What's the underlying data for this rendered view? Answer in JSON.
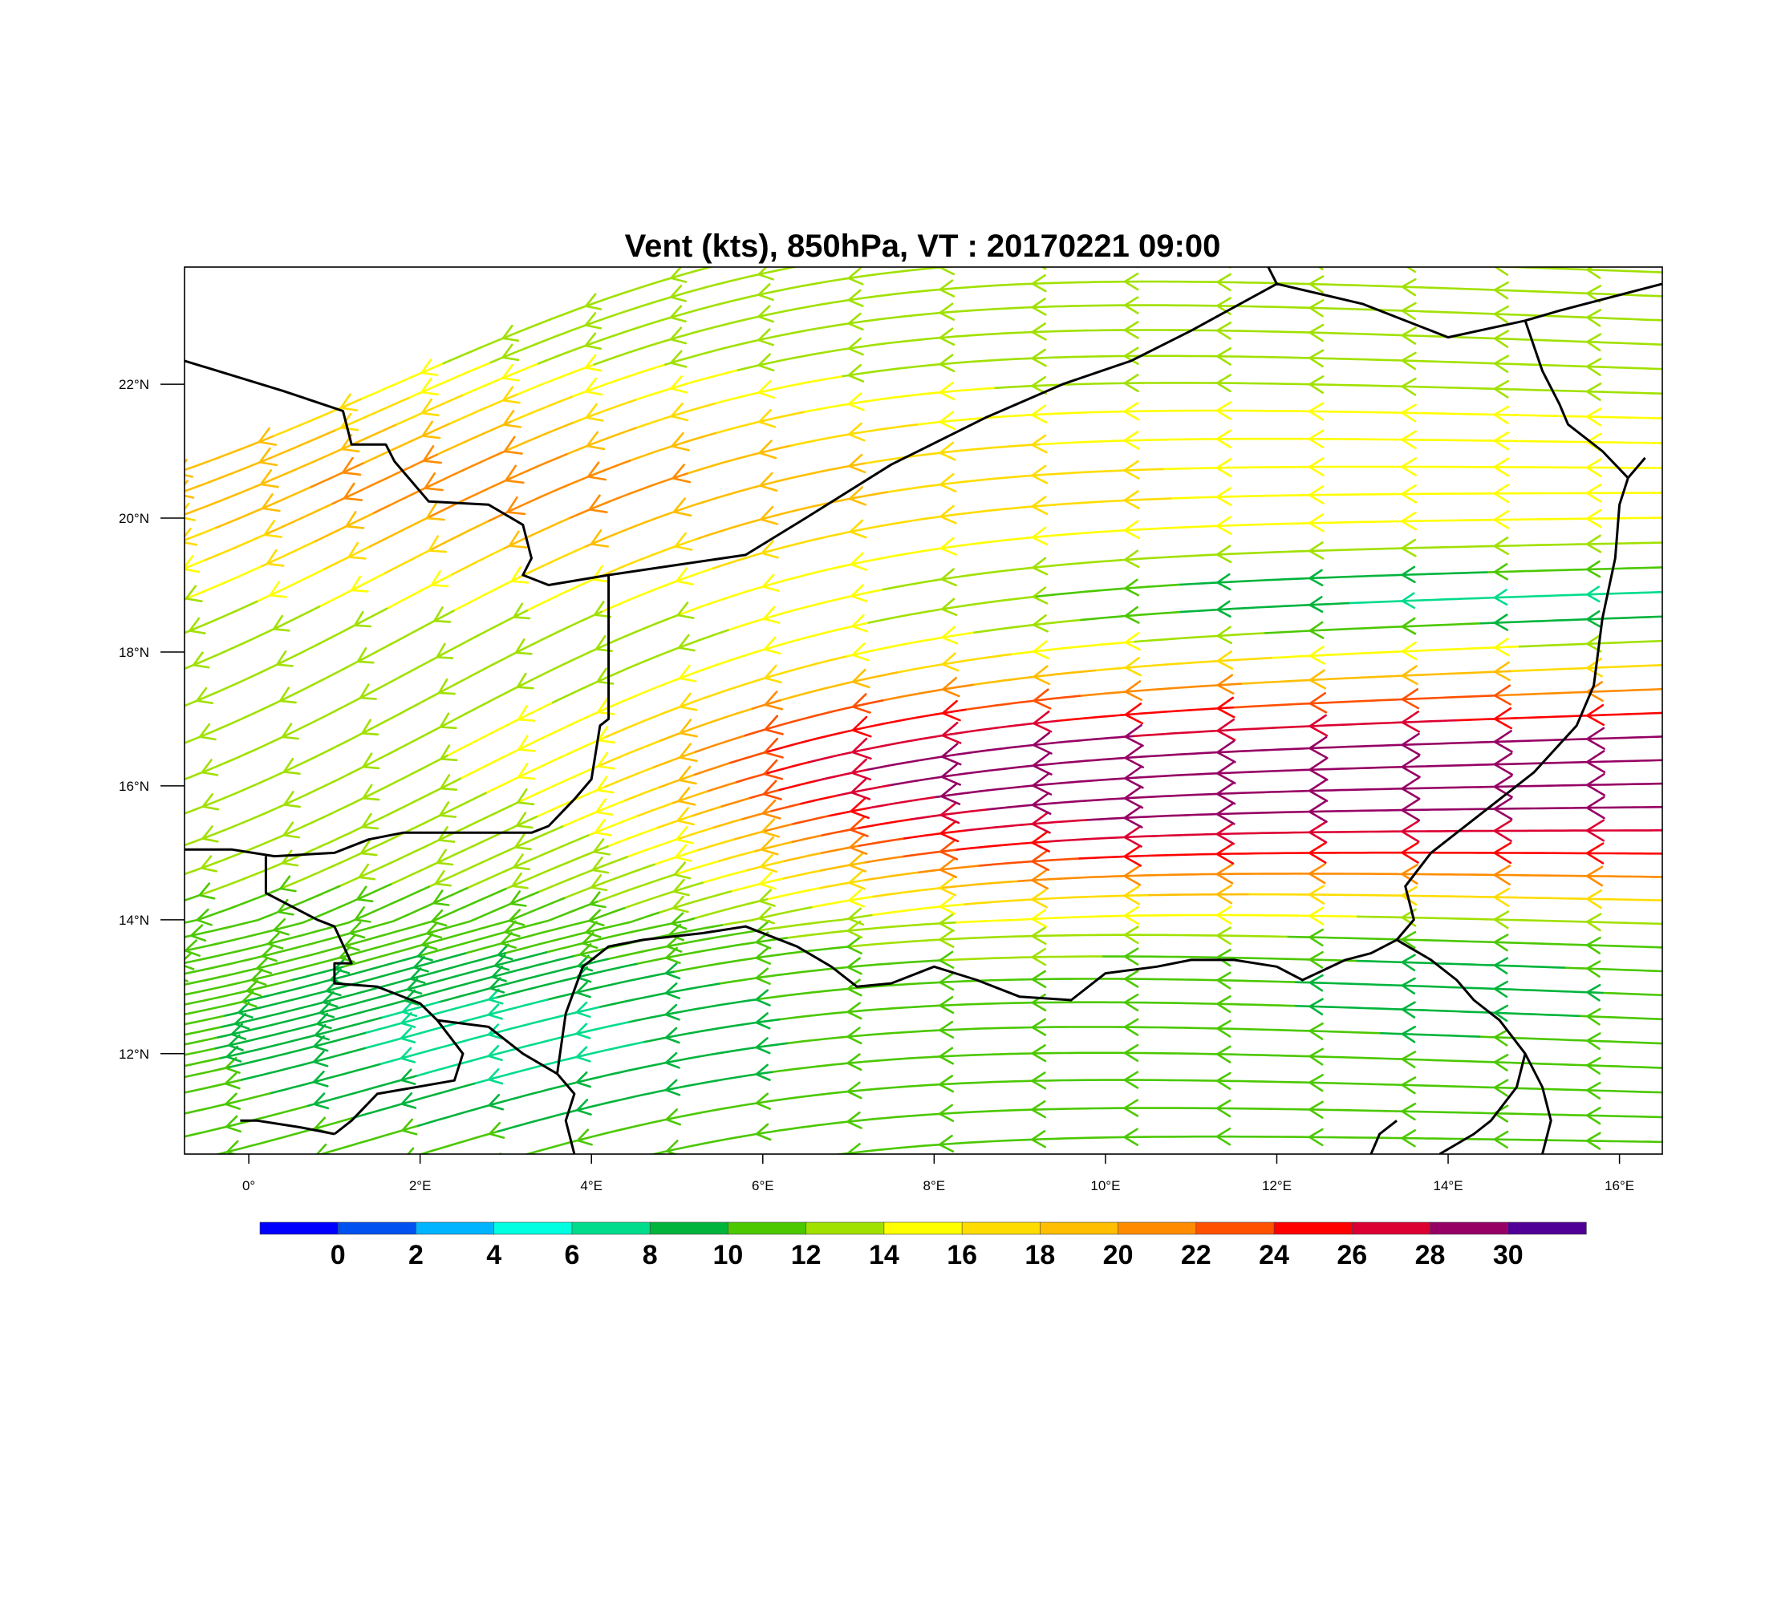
{
  "title": "Vent (kts), 850hPa, VT : 20170221  09:00",
  "map": {
    "lon_range": [
      -0.75,
      16.5
    ],
    "lat_range": [
      10.5,
      23.75
    ],
    "lon_ticks": [
      {
        "value": 0,
        "label": "0°"
      },
      {
        "value": 2,
        "label": "2°E"
      },
      {
        "value": 4,
        "label": "4°E"
      },
      {
        "value": 6,
        "label": "6°E"
      },
      {
        "value": 8,
        "label": "8°E"
      },
      {
        "value": 10,
        "label": "10°E"
      },
      {
        "value": 12,
        "label": "12°E"
      },
      {
        "value": 14,
        "label": "14°E"
      },
      {
        "value": 16,
        "label": "16°E"
      }
    ],
    "lat_ticks": [
      {
        "value": 12,
        "label": "12°N"
      },
      {
        "value": 14,
        "label": "14°N"
      },
      {
        "value": 16,
        "label": "16°N"
      },
      {
        "value": 18,
        "label": "18°N"
      },
      {
        "value": 20,
        "label": "20°N"
      },
      {
        "value": 22,
        "label": "22°N"
      }
    ],
    "borders": [
      [
        [
          -0.75,
          22.35
        ],
        [
          0.4,
          21.9
        ],
        [
          1.1,
          21.6
        ],
        [
          1.2,
          21.1
        ],
        [
          1.6,
          21.1
        ],
        [
          1.7,
          20.85
        ],
        [
          2.1,
          20.25
        ],
        [
          2.8,
          20.2
        ],
        [
          3.2,
          19.9
        ],
        [
          3.3,
          19.4
        ],
        [
          3.2,
          19.15
        ],
        [
          3.5,
          19.0
        ],
        [
          4.2,
          19.15
        ],
        [
          5.0,
          19.3
        ],
        [
          5.8,
          19.45
        ],
        [
          6.5,
          20.0
        ],
        [
          7.5,
          20.8
        ],
        [
          8.6,
          21.5
        ],
        [
          9.5,
          22.0
        ],
        [
          10.3,
          22.35
        ],
        [
          11.0,
          22.8
        ],
        [
          12.0,
          23.5
        ],
        [
          13.0,
          23.2
        ],
        [
          14.0,
          22.7
        ],
        [
          14.9,
          22.95
        ],
        [
          15.3,
          23.1
        ],
        [
          16.5,
          23.5
        ]
      ],
      [
        [
          12.0,
          23.5
        ],
        [
          11.9,
          23.75
        ]
      ],
      [
        [
          4.2,
          19.15
        ],
        [
          4.2,
          18.6
        ],
        [
          4.2,
          17.9
        ],
        [
          4.2,
          17.0
        ],
        [
          4.1,
          16.9
        ],
        [
          4.0,
          16.1
        ],
        [
          3.8,
          15.8
        ],
        [
          3.5,
          15.4
        ],
        [
          3.3,
          15.3
        ],
        [
          2.6,
          15.3
        ],
        [
          1.8,
          15.3
        ],
        [
          1.4,
          15.2
        ],
        [
          1.0,
          15.0
        ],
        [
          0.3,
          14.95
        ],
        [
          -0.2,
          15.05
        ],
        [
          -0.75,
          15.05
        ]
      ],
      [
        [
          0.2,
          14.95
        ],
        [
          0.2,
          14.4
        ],
        [
          0.5,
          14.2
        ],
        [
          0.8,
          14.0
        ],
        [
          1.0,
          13.9
        ],
        [
          1.2,
          13.35
        ],
        [
          1.0,
          13.35
        ],
        [
          1.0,
          13.05
        ],
        [
          1.5,
          13.0
        ],
        [
          2.0,
          12.75
        ],
        [
          2.2,
          12.5
        ],
        [
          2.5,
          12.0
        ],
        [
          2.4,
          11.6
        ],
        [
          1.5,
          11.4
        ],
        [
          1.2,
          11.0
        ],
        [
          1.0,
          10.8
        ]
      ],
      [
        [
          1.0,
          10.8
        ],
        [
          0.6,
          10.9
        ],
        [
          0.1,
          11.0
        ],
        [
          -0.1,
          11.0
        ]
      ],
      [
        [
          2.2,
          12.5
        ],
        [
          2.8,
          12.4
        ],
        [
          3.2,
          12.0
        ],
        [
          3.6,
          11.7
        ],
        [
          3.8,
          11.4
        ],
        [
          3.7,
          11.0
        ],
        [
          3.8,
          10.5
        ]
      ],
      [
        [
          3.6,
          11.7
        ],
        [
          3.7,
          12.6
        ],
        [
          3.9,
          13.3
        ],
        [
          4.2,
          13.6
        ],
        [
          4.6,
          13.7
        ],
        [
          5.3,
          13.8
        ],
        [
          5.8,
          13.9
        ],
        [
          6.4,
          13.6
        ],
        [
          6.8,
          13.3
        ],
        [
          7.1,
          13.0
        ],
        [
          7.5,
          13.05
        ],
        [
          8.0,
          13.3
        ],
        [
          8.5,
          13.1
        ],
        [
          9.0,
          12.85
        ],
        [
          9.6,
          12.8
        ],
        [
          10.0,
          13.2
        ],
        [
          10.6,
          13.3
        ],
        [
          11.0,
          13.4
        ],
        [
          11.5,
          13.4
        ],
        [
          12.0,
          13.3
        ],
        [
          12.3,
          13.1
        ],
        [
          12.8,
          13.4
        ],
        [
          13.1,
          13.5
        ],
        [
          13.4,
          13.7
        ],
        [
          13.6,
          14.0
        ],
        [
          13.5,
          14.5
        ],
        [
          13.8,
          15.0
        ],
        [
          14.4,
          15.6
        ],
        [
          15.0,
          16.2
        ],
        [
          15.5,
          16.9
        ],
        [
          15.7,
          17.5
        ],
        [
          15.8,
          18.5
        ],
        [
          15.95,
          19.4
        ],
        [
          16.0,
          20.2
        ],
        [
          16.1,
          20.6
        ],
        [
          16.3,
          20.9
        ]
      ],
      [
        [
          14.9,
          22.95
        ],
        [
          15.1,
          22.2
        ],
        [
          15.3,
          21.7
        ],
        [
          15.4,
          21.4
        ],
        [
          15.8,
          21.0
        ],
        [
          16.1,
          20.6
        ]
      ],
      [
        [
          13.4,
          13.7
        ],
        [
          13.8,
          13.4
        ],
        [
          14.1,
          13.1
        ],
        [
          14.3,
          12.8
        ],
        [
          14.6,
          12.5
        ],
        [
          14.9,
          12.0
        ],
        [
          14.8,
          11.5
        ],
        [
          14.5,
          11.0
        ],
        [
          14.3,
          10.8
        ],
        [
          13.9,
          10.5
        ]
      ],
      [
        [
          14.9,
          12.0
        ],
        [
          15.1,
          11.5
        ],
        [
          15.2,
          11.0
        ],
        [
          15.1,
          10.5
        ]
      ],
      [
        [
          13.4,
          11.0
        ],
        [
          13.2,
          10.8
        ],
        [
          13.1,
          10.5
        ]
      ]
    ]
  },
  "colorbar": {
    "colors": [
      "#0000ff",
      "#0051f0",
      "#00b4ff",
      "#00ffe1",
      "#00dc8c",
      "#00b43c",
      "#4bc800",
      "#a0e100",
      "#ffff00",
      "#ffdc00",
      "#ffbe00",
      "#ff8c00",
      "#ff5000",
      "#ff0000",
      "#dc0032",
      "#960064",
      "#500096"
    ],
    "labels": [
      "0",
      "2",
      "4",
      "6",
      "8",
      "10",
      "12",
      "14",
      "16",
      "18",
      "20",
      "22",
      "24",
      "26",
      "28",
      "30"
    ]
  },
  "icons": [
    "streamline-arrow-icon"
  ]
}
